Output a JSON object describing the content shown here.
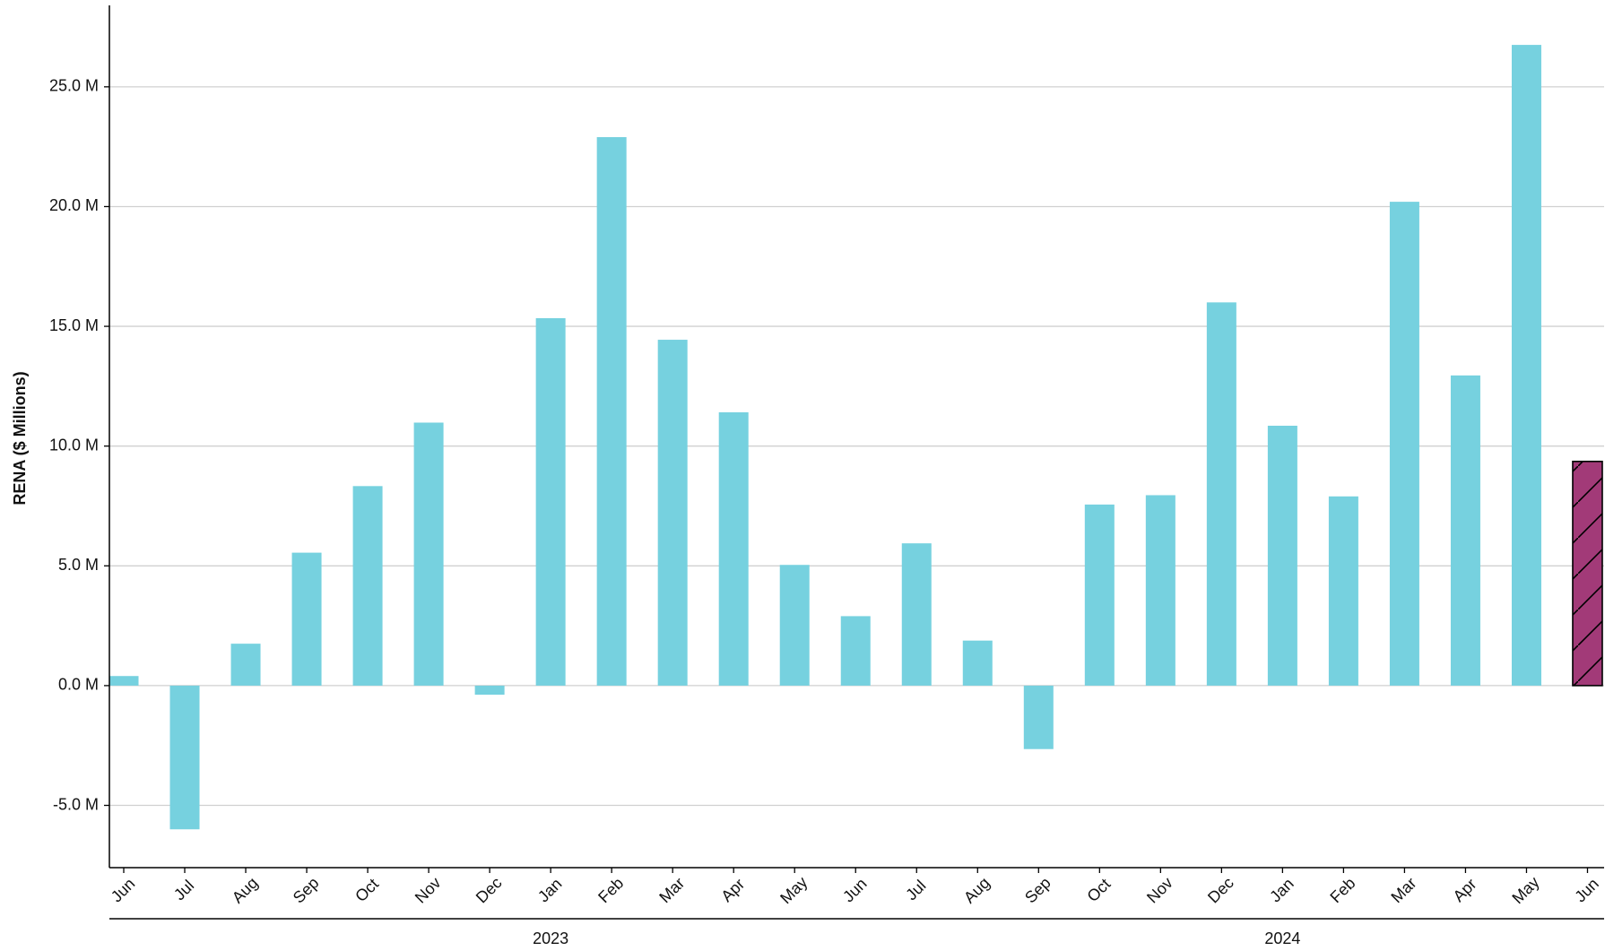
{
  "chart_data": {
    "type": "bar",
    "y_label": "RENA ($ Millions)",
    "categories": [
      "Jun",
      "Jul",
      "Aug",
      "Sep",
      "Oct",
      "Nov",
      "Dec",
      "Jan",
      "Feb",
      "Mar",
      "Apr",
      "May",
      "Jun",
      "Jul",
      "Aug",
      "Sep",
      "Oct",
      "Nov",
      "Dec",
      "Jan",
      "Feb",
      "Mar",
      "Apr",
      "May",
      "Jun"
    ],
    "values": [
      0.4,
      -6.0,
      1.75,
      5.55,
      8.33,
      10.98,
      -0.38,
      15.34,
      22.9,
      14.44,
      11.41,
      5.04,
      2.9,
      5.94,
      1.88,
      -2.65,
      7.56,
      7.95,
      16.0,
      10.85,
      7.9,
      20.2,
      12.95,
      26.75,
      9.36
    ],
    "colors": [
      "#76d1df",
      "#76d1df",
      "#76d1df",
      "#76d1df",
      "#76d1df",
      "#76d1df",
      "#76d1df",
      "#76d1df",
      "#76d1df",
      "#76d1df",
      "#76d1df",
      "#76d1df",
      "#76d1df",
      "#76d1df",
      "#76d1df",
      "#76d1df",
      "#76d1df",
      "#76d1df",
      "#76d1df",
      "#76d1df",
      "#76d1df",
      "#76d1df",
      "#76d1df",
      "#76d1df",
      "#a23a78"
    ],
    "hatches": [
      null,
      null,
      null,
      null,
      null,
      null,
      null,
      null,
      null,
      null,
      null,
      null,
      null,
      null,
      null,
      null,
      null,
      null,
      null,
      null,
      null,
      null,
      null,
      null,
      "/"
    ],
    "year_labels": [
      "2023",
      "2024"
    ],
    "ylim": [
      -7.6,
      28.4
    ],
    "yticks": [
      {
        "value": -5,
        "label": "-5.0 M"
      },
      {
        "value": 0,
        "label": "0.0 M"
      },
      {
        "value": 5,
        "label": "5.0 M"
      },
      {
        "value": 10,
        "label": "10.0 M"
      },
      {
        "value": 15,
        "label": "15.0 M"
      },
      {
        "value": 20,
        "label": "20.0 M"
      },
      {
        "value": 25,
        "label": "25.0 M"
      }
    ],
    "grid": true
  }
}
